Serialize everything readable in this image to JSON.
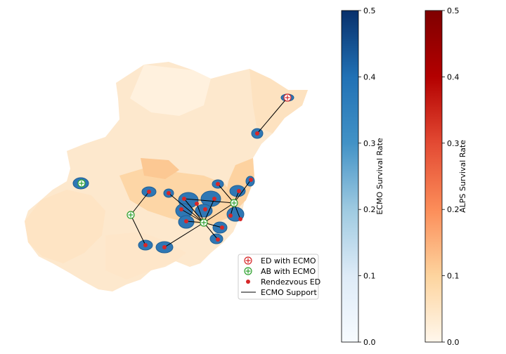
{
  "chart_data": {
    "type": "scatter",
    "map": {
      "base_layer": "ALPS survival rate by region",
      "ecmo_layer": "ECMO survival rate coverage"
    },
    "colorbars": [
      {
        "label": "ECMO Survival Rate",
        "colormap": "Blues",
        "range": [
          0.0,
          0.5
        ],
        "ticks": [
          "0.0",
          "0.1",
          "0.2",
          "0.3",
          "0.4",
          "0.5"
        ],
        "color_low": "#f7fbff",
        "color_high": "#08306b"
      },
      {
        "label": "ALPS Survival Rate",
        "colormap": "OrRd",
        "range": [
          0.0,
          0.5
        ],
        "ticks": [
          "0.0",
          "0.1",
          "0.2",
          "0.3",
          "0.4",
          "0.5"
        ],
        "color_low": "#fff7ec",
        "color_high": "#7f0000"
      }
    ],
    "legend": {
      "placement": "lower-right",
      "entries": [
        {
          "label": "ED with ECMO",
          "marker": "circle-plus",
          "color": "#d62728"
        },
        {
          "label": "AB with ECMO",
          "marker": "circle-plus",
          "color": "#2ca02c"
        },
        {
          "label": "Rendezvous ED",
          "marker": "dot",
          "color": "#d62728"
        },
        {
          "label": "ECMO Support",
          "marker": "line",
          "color": "#000000"
        }
      ]
    },
    "colors": {
      "ecmo_site": "#d62728",
      "ab_site": "#2ca02c",
      "rendezvous": "#d62728",
      "coverage": "#2f77b4",
      "support_line": "#000000"
    }
  }
}
